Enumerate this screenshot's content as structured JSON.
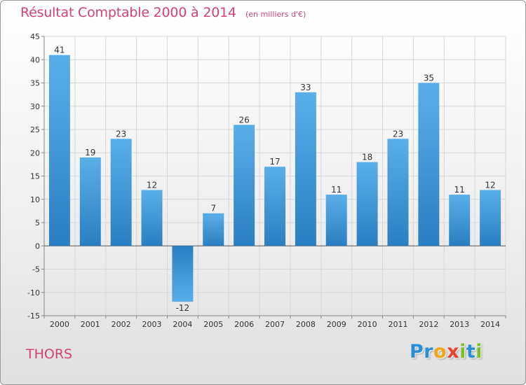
{
  "chart_data": {
    "type": "bar",
    "title": "Résultat Comptable 2000 à 2014",
    "subtitle": "(en milliers d'€)",
    "categories": [
      "2000",
      "2001",
      "2002",
      "2003",
      "2004",
      "2005",
      "2006",
      "2007",
      "2008",
      "2009",
      "2010",
      "2011",
      "2012",
      "2013",
      "2014"
    ],
    "values": [
      41,
      19,
      23,
      12,
      -12,
      7,
      26,
      17,
      33,
      11,
      18,
      23,
      35,
      11,
      12
    ],
    "value_labels": [
      "41",
      "19",
      "23",
      "12",
      "-12",
      "7",
      "26",
      "17",
      "33",
      "11",
      "18",
      "23",
      "35",
      "11",
      "12"
    ],
    "ylim": [
      -15,
      45
    ],
    "yticks": [
      -15,
      -10,
      -5,
      0,
      5,
      10,
      15,
      20,
      25,
      30,
      35,
      40,
      45
    ],
    "ytick_labels": [
      "-15",
      "-10",
      "-5",
      "0",
      "5",
      "10",
      "15",
      "20",
      "25",
      "30",
      "35",
      "40",
      "45"
    ],
    "xlabel": "",
    "ylabel": "",
    "grid": true,
    "bar_color_light": "#5aaee8",
    "bar_color_dark": "#2a7fc2",
    "grid_color": "#d8d8d8",
    "zero_line_color": "#555555"
  },
  "footer": {
    "commune": "THORS"
  },
  "logo": {
    "letters": [
      {
        "char": "P",
        "color": "#2b8fd6"
      },
      {
        "char": "r",
        "color": "#2b8fd6"
      },
      {
        "char": "o",
        "color": "#f2a71b"
      },
      {
        "char": "x",
        "color": "#e8432c"
      },
      {
        "char": "i",
        "color": "#7cbf2a"
      },
      {
        "char": "t",
        "color": "#2b8fd6"
      },
      {
        "char": "i",
        "color": "#7cbf2a"
      }
    ]
  }
}
